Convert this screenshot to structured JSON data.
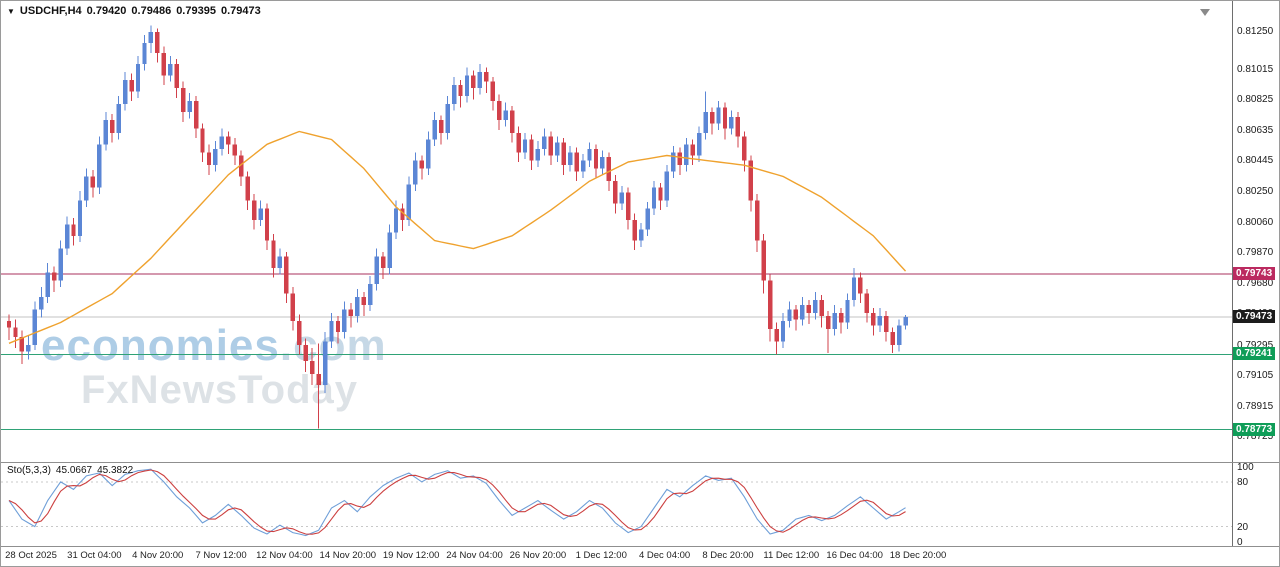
{
  "header": {
    "symbol": "USDCHF,H4",
    "open": "0.79420",
    "high": "0.79486",
    "low": "0.79395",
    "close": "0.79473",
    "icon": "▼"
  },
  "watermark": {
    "line1_main": "economies",
    "line1_suffix": ".com",
    "line2": "FxNewsToday"
  },
  "chart_data": {
    "type": "candlestick",
    "symbol": "USDCHF",
    "timeframe": "H4",
    "current_ohlc": {
      "open": 0.7942,
      "high": 0.79486,
      "low": 0.79395,
      "close": 0.79473
    },
    "price_axis": {
      "top": 0.81393,
      "bottom": 0.78577,
      "ticks": [
        "0.81250",
        "0.81015",
        "0.80825",
        "0.80635",
        "0.80445",
        "0.80250",
        "0.80060",
        "0.79870",
        "0.79680",
        "0.79490",
        "0.79295",
        "0.79105",
        "0.78915",
        "0.78725"
      ]
    },
    "x_labels": [
      "28 Oct 2025",
      "31 Oct 04:00",
      "4 Nov 20:00",
      "7 Nov 12:00",
      "12 Nov 04:00",
      "14 Nov 20:00",
      "19 Nov 12:00",
      "24 Nov 04:00",
      "26 Nov 20:00",
      "1 Dec 12:00",
      "4 Dec 04:00",
      "8 Dec 20:00",
      "11 Dec 12:00",
      "16 Dec 04:00",
      "18 Dec 20:00"
    ],
    "colors": {
      "up": "#5b86d5",
      "down": "#d1404a",
      "ma": "#efa22e",
      "sto_main": "#6f9fd8",
      "sto_signal": "#cc4040",
      "current_line": "#c3c3c3",
      "level_dash": "#c8c8c8"
    },
    "h_lines": [
      {
        "name": "resistance-line",
        "price": 0.79743,
        "label": "0.79743",
        "color": "#a8325e",
        "label_bg": "#bb2a60"
      },
      {
        "name": "current-price-line",
        "price": 0.79473,
        "label": "0.79473",
        "color": "#c3c3c3",
        "label_bg": "#1c1c1c"
      },
      {
        "name": "support-line-1",
        "price": 0.79241,
        "label": "0.79241",
        "color": "#2fa276",
        "label_bg": "#0f9d58"
      },
      {
        "name": "support-line-2",
        "price": 0.78773,
        "label": "0.78773",
        "color": "#2fa276",
        "label_bg": "#0f9d58"
      }
    ],
    "ma_orange": [
      [
        0,
        0.7931
      ],
      [
        8,
        0.7944
      ],
      [
        16,
        0.7962
      ],
      [
        22,
        0.7984
      ],
      [
        28,
        0.801
      ],
      [
        34,
        0.8036
      ],
      [
        40,
        0.8055
      ],
      [
        45,
        0.8063
      ],
      [
        50,
        0.8058
      ],
      [
        55,
        0.804
      ],
      [
        60,
        0.8016
      ],
      [
        66,
        0.7995
      ],
      [
        72,
        0.799
      ],
      [
        78,
        0.7998
      ],
      [
        84,
        0.8014
      ],
      [
        90,
        0.8032
      ],
      [
        96,
        0.8044
      ],
      [
        102,
        0.8048
      ],
      [
        108,
        0.8045
      ],
      [
        114,
        0.8042
      ],
      [
        120,
        0.8035
      ],
      [
        126,
        0.8022
      ],
      [
        130,
        0.801
      ],
      [
        134,
        0.7998
      ],
      [
        139,
        0.7976
      ]
    ],
    "candles": [
      [
        0.7945,
        0.7949,
        0.7933,
        0.7941
      ],
      [
        0.7941,
        0.7946,
        0.7928,
        0.7935
      ],
      [
        0.7935,
        0.7939,
        0.7918,
        0.7926
      ],
      [
        0.7926,
        0.7936,
        0.7921,
        0.793
      ],
      [
        0.793,
        0.7957,
        0.7927,
        0.7952
      ],
      [
        0.7952,
        0.7966,
        0.7947,
        0.796
      ],
      [
        0.796,
        0.7981,
        0.7956,
        0.7975
      ],
      [
        0.7975,
        0.7979,
        0.7963,
        0.797
      ],
      [
        0.797,
        0.7995,
        0.7966,
        0.799
      ],
      [
        0.799,
        0.801,
        0.7986,
        0.8005
      ],
      [
        0.8005,
        0.8009,
        0.7992,
        0.7998
      ],
      [
        0.7998,
        0.8026,
        0.7994,
        0.802
      ],
      [
        0.802,
        0.804,
        0.8016,
        0.8035
      ],
      [
        0.8035,
        0.8039,
        0.8022,
        0.8028
      ],
      [
        0.8028,
        0.806,
        0.8024,
        0.8055
      ],
      [
        0.8055,
        0.8075,
        0.8051,
        0.807
      ],
      [
        0.807,
        0.8074,
        0.8056,
        0.8062
      ],
      [
        0.8062,
        0.8085,
        0.8058,
        0.808
      ],
      [
        0.808,
        0.81,
        0.8076,
        0.8095
      ],
      [
        0.8095,
        0.8099,
        0.8082,
        0.8088
      ],
      [
        0.8088,
        0.811,
        0.8084,
        0.8105
      ],
      [
        0.8105,
        0.8123,
        0.8101,
        0.8118
      ],
      [
        0.8118,
        0.8129,
        0.8112,
        0.8125
      ],
      [
        0.8125,
        0.8127,
        0.8106,
        0.8112
      ],
      [
        0.8112,
        0.8116,
        0.8092,
        0.8098
      ],
      [
        0.8098,
        0.811,
        0.8094,
        0.8105
      ],
      [
        0.8105,
        0.8108,
        0.8084,
        0.809
      ],
      [
        0.809,
        0.8094,
        0.8069,
        0.8075
      ],
      [
        0.8075,
        0.8087,
        0.8071,
        0.8082
      ],
      [
        0.8082,
        0.8085,
        0.8059,
        0.8065
      ],
      [
        0.8065,
        0.8068,
        0.8044,
        0.805
      ],
      [
        0.805,
        0.8055,
        0.8036,
        0.8042
      ],
      [
        0.8042,
        0.8057,
        0.8038,
        0.8052
      ],
      [
        0.8052,
        0.8065,
        0.8048,
        0.806
      ],
      [
        0.806,
        0.8063,
        0.8049,
        0.8055
      ],
      [
        0.8055,
        0.8059,
        0.8042,
        0.8048
      ],
      [
        0.8048,
        0.8051,
        0.8029,
        0.8035
      ],
      [
        0.8035,
        0.8038,
        0.8014,
        0.802
      ],
      [
        0.802,
        0.8024,
        0.8002,
        0.8008
      ],
      [
        0.8008,
        0.802,
        0.8004,
        0.8015
      ],
      [
        0.8015,
        0.8018,
        0.7989,
        0.7995
      ],
      [
        0.7995,
        0.7999,
        0.7972,
        0.7978
      ],
      [
        0.7978,
        0.799,
        0.7974,
        0.7985
      ],
      [
        0.7985,
        0.7988,
        0.7956,
        0.7962
      ],
      [
        0.7962,
        0.7966,
        0.7939,
        0.7945
      ],
      [
        0.7945,
        0.7949,
        0.7924,
        0.793
      ],
      [
        0.793,
        0.7934,
        0.7913,
        0.792
      ],
      [
        0.792,
        0.7928,
        0.7905,
        0.7912
      ],
      [
        0.7912,
        0.7931,
        0.7878,
        0.7905
      ],
      [
        0.7905,
        0.7938,
        0.79,
        0.7932
      ],
      [
        0.7932,
        0.795,
        0.7928,
        0.7945
      ],
      [
        0.7945,
        0.7948,
        0.7931,
        0.7938
      ],
      [
        0.7938,
        0.7957,
        0.7934,
        0.7952
      ],
      [
        0.7952,
        0.7956,
        0.7941,
        0.7948
      ],
      [
        0.7948,
        0.7965,
        0.7944,
        0.796
      ],
      [
        0.796,
        0.7963,
        0.7948,
        0.7955
      ],
      [
        0.7955,
        0.7973,
        0.7951,
        0.7968
      ],
      [
        0.7968,
        0.799,
        0.7964,
        0.7985
      ],
      [
        0.7985,
        0.7988,
        0.7971,
        0.7978
      ],
      [
        0.7978,
        0.8005,
        0.7974,
        0.8
      ],
      [
        0.8,
        0.802,
        0.7996,
        0.8015
      ],
      [
        0.8015,
        0.8018,
        0.8001,
        0.8008
      ],
      [
        0.8008,
        0.8035,
        0.8004,
        0.803
      ],
      [
        0.803,
        0.805,
        0.8026,
        0.8045
      ],
      [
        0.8045,
        0.8048,
        0.8033,
        0.804
      ],
      [
        0.804,
        0.8063,
        0.8036,
        0.8058
      ],
      [
        0.8058,
        0.8075,
        0.8054,
        0.807
      ],
      [
        0.807,
        0.8073,
        0.8055,
        0.8062
      ],
      [
        0.8062,
        0.8085,
        0.8058,
        0.808
      ],
      [
        0.808,
        0.8097,
        0.8076,
        0.8092
      ],
      [
        0.8092,
        0.8095,
        0.8078,
        0.8085
      ],
      [
        0.8085,
        0.8103,
        0.8081,
        0.8098
      ],
      [
        0.8098,
        0.8101,
        0.8083,
        0.809
      ],
      [
        0.809,
        0.8105,
        0.8086,
        0.81
      ],
      [
        0.81,
        0.8103,
        0.8087,
        0.8094
      ],
      [
        0.8094,
        0.8097,
        0.8076,
        0.8082
      ],
      [
        0.8082,
        0.8086,
        0.8064,
        0.807
      ],
      [
        0.807,
        0.8081,
        0.8066,
        0.8076
      ],
      [
        0.8076,
        0.8079,
        0.8056,
        0.8062
      ],
      [
        0.8062,
        0.8066,
        0.8044,
        0.805
      ],
      [
        0.805,
        0.8062,
        0.8046,
        0.8058
      ],
      [
        0.8058,
        0.8061,
        0.8039,
        0.8045
      ],
      [
        0.8045,
        0.8057,
        0.8041,
        0.8052
      ],
      [
        0.8052,
        0.8065,
        0.8048,
        0.806
      ],
      [
        0.806,
        0.8063,
        0.8042,
        0.8048
      ],
      [
        0.8048,
        0.806,
        0.8044,
        0.8056
      ],
      [
        0.8056,
        0.8059,
        0.8036,
        0.8042
      ],
      [
        0.8042,
        0.8054,
        0.8038,
        0.805
      ],
      [
        0.805,
        0.8053,
        0.8032,
        0.8038
      ],
      [
        0.8038,
        0.8049,
        0.8034,
        0.8045
      ],
      [
        0.8045,
        0.8056,
        0.8041,
        0.8052
      ],
      [
        0.8052,
        0.8055,
        0.8034,
        0.804
      ],
      [
        0.804,
        0.8051,
        0.8036,
        0.8047
      ],
      [
        0.8047,
        0.805,
        0.8026,
        0.8032
      ],
      [
        0.8032,
        0.8036,
        0.8012,
        0.8018
      ],
      [
        0.8018,
        0.8029,
        0.8014,
        0.8025
      ],
      [
        0.8025,
        0.8028,
        0.8002,
        0.8008
      ],
      [
        0.8008,
        0.8012,
        0.7989,
        0.7995
      ],
      [
        0.7995,
        0.8006,
        0.7991,
        0.8002
      ],
      [
        0.8002,
        0.8019,
        0.7998,
        0.8015
      ],
      [
        0.8015,
        0.8032,
        0.8011,
        0.8028
      ],
      [
        0.8028,
        0.8031,
        0.8014,
        0.802
      ],
      [
        0.802,
        0.8042,
        0.8016,
        0.8038
      ],
      [
        0.8038,
        0.8054,
        0.8034,
        0.805
      ],
      [
        0.805,
        0.8053,
        0.8036,
        0.8042
      ],
      [
        0.8042,
        0.8059,
        0.8038,
        0.8055
      ],
      [
        0.8055,
        0.8058,
        0.8042,
        0.8048
      ],
      [
        0.8048,
        0.8066,
        0.8044,
        0.8062
      ],
      [
        0.8062,
        0.8088,
        0.8058,
        0.8075
      ],
      [
        0.8075,
        0.8078,
        0.8061,
        0.8068
      ],
      [
        0.8068,
        0.8082,
        0.8064,
        0.8078
      ],
      [
        0.8078,
        0.8081,
        0.8058,
        0.8065
      ],
      [
        0.8065,
        0.8076,
        0.8061,
        0.8072
      ],
      [
        0.8072,
        0.8075,
        0.8053,
        0.806
      ],
      [
        0.806,
        0.8063,
        0.8038,
        0.8045
      ],
      [
        0.8045,
        0.8048,
        0.8013,
        0.802
      ],
      [
        0.802,
        0.8024,
        0.7988,
        0.7995
      ],
      [
        0.7995,
        0.7999,
        0.7962,
        0.797
      ],
      [
        0.797,
        0.7974,
        0.7932,
        0.794
      ],
      [
        0.794,
        0.7944,
        0.7924,
        0.7932
      ],
      [
        0.7932,
        0.795,
        0.7928,
        0.7945
      ],
      [
        0.7945,
        0.7957,
        0.7941,
        0.7952
      ],
      [
        0.7952,
        0.7955,
        0.7939,
        0.7946
      ],
      [
        0.7946,
        0.796,
        0.7942,
        0.7955
      ],
      [
        0.7955,
        0.7958,
        0.7943,
        0.795
      ],
      [
        0.795,
        0.7963,
        0.7946,
        0.7958
      ],
      [
        0.7958,
        0.7961,
        0.7941,
        0.7948
      ],
      [
        0.7948,
        0.7951,
        0.7925,
        0.794
      ],
      [
        0.794,
        0.7955,
        0.7936,
        0.795
      ],
      [
        0.795,
        0.7953,
        0.7937,
        0.7944
      ],
      [
        0.7944,
        0.7962,
        0.794,
        0.7958
      ],
      [
        0.7958,
        0.7978,
        0.7954,
        0.7972
      ],
      [
        0.7972,
        0.7975,
        0.7956,
        0.7962
      ],
      [
        0.7962,
        0.7965,
        0.7944,
        0.795
      ],
      [
        0.795,
        0.7953,
        0.7936,
        0.7942
      ],
      [
        0.7942,
        0.7953,
        0.7938,
        0.7948
      ],
      [
        0.7948,
        0.7951,
        0.7932,
        0.7938
      ],
      [
        0.7938,
        0.7941,
        0.7925,
        0.793
      ],
      [
        0.793,
        0.7946,
        0.7926,
        0.7942
      ],
      [
        0.7942,
        0.79486,
        0.79395,
        0.79473
      ]
    ],
    "stochastic": {
      "label": "Sto(5,3,3)",
      "value_main": "45.0667",
      "value_signal": "45.3822",
      "range": [
        0,
        100
      ],
      "levels": [
        "100",
        "80",
        "20",
        "0"
      ],
      "levels_dashed": [
        80,
        20
      ],
      "points": [
        [
          0,
          55
        ],
        [
          2,
          30
        ],
        [
          4,
          20
        ],
        [
          6,
          55
        ],
        [
          8,
          80
        ],
        [
          10,
          70
        ],
        [
          12,
          88
        ],
        [
          14,
          92
        ],
        [
          16,
          75
        ],
        [
          18,
          90
        ],
        [
          20,
          95
        ],
        [
          22,
          97
        ],
        [
          24,
          80
        ],
        [
          26,
          60
        ],
        [
          28,
          45
        ],
        [
          30,
          25
        ],
        [
          32,
          35
        ],
        [
          34,
          50
        ],
        [
          36,
          35
        ],
        [
          38,
          18
        ],
        [
          40,
          10
        ],
        [
          42,
          22
        ],
        [
          44,
          12
        ],
        [
          46,
          8
        ],
        [
          48,
          15
        ],
        [
          50,
          45
        ],
        [
          52,
          55
        ],
        [
          54,
          40
        ],
        [
          56,
          60
        ],
        [
          58,
          75
        ],
        [
          60,
          85
        ],
        [
          62,
          92
        ],
        [
          64,
          80
        ],
        [
          66,
          90
        ],
        [
          68,
          95
        ],
        [
          70,
          85
        ],
        [
          72,
          88
        ],
        [
          74,
          78
        ],
        [
          76,
          55
        ],
        [
          78,
          35
        ],
        [
          80,
          45
        ],
        [
          82,
          55
        ],
        [
          84,
          42
        ],
        [
          86,
          30
        ],
        [
          88,
          40
        ],
        [
          90,
          55
        ],
        [
          92,
          45
        ],
        [
          94,
          25
        ],
        [
          96,
          12
        ],
        [
          98,
          20
        ],
        [
          100,
          45
        ],
        [
          102,
          70
        ],
        [
          104,
          60
        ],
        [
          106,
          75
        ],
        [
          108,
          88
        ],
        [
          110,
          82
        ],
        [
          112,
          85
        ],
        [
          114,
          60
        ],
        [
          116,
          30
        ],
        [
          118,
          10
        ],
        [
          120,
          15
        ],
        [
          122,
          30
        ],
        [
          124,
          35
        ],
        [
          126,
          28
        ],
        [
          128,
          35
        ],
        [
          130,
          48
        ],
        [
          132,
          60
        ],
        [
          134,
          45
        ],
        [
          136,
          30
        ],
        [
          138,
          40
        ],
        [
          139,
          45.4
        ]
      ]
    }
  }
}
